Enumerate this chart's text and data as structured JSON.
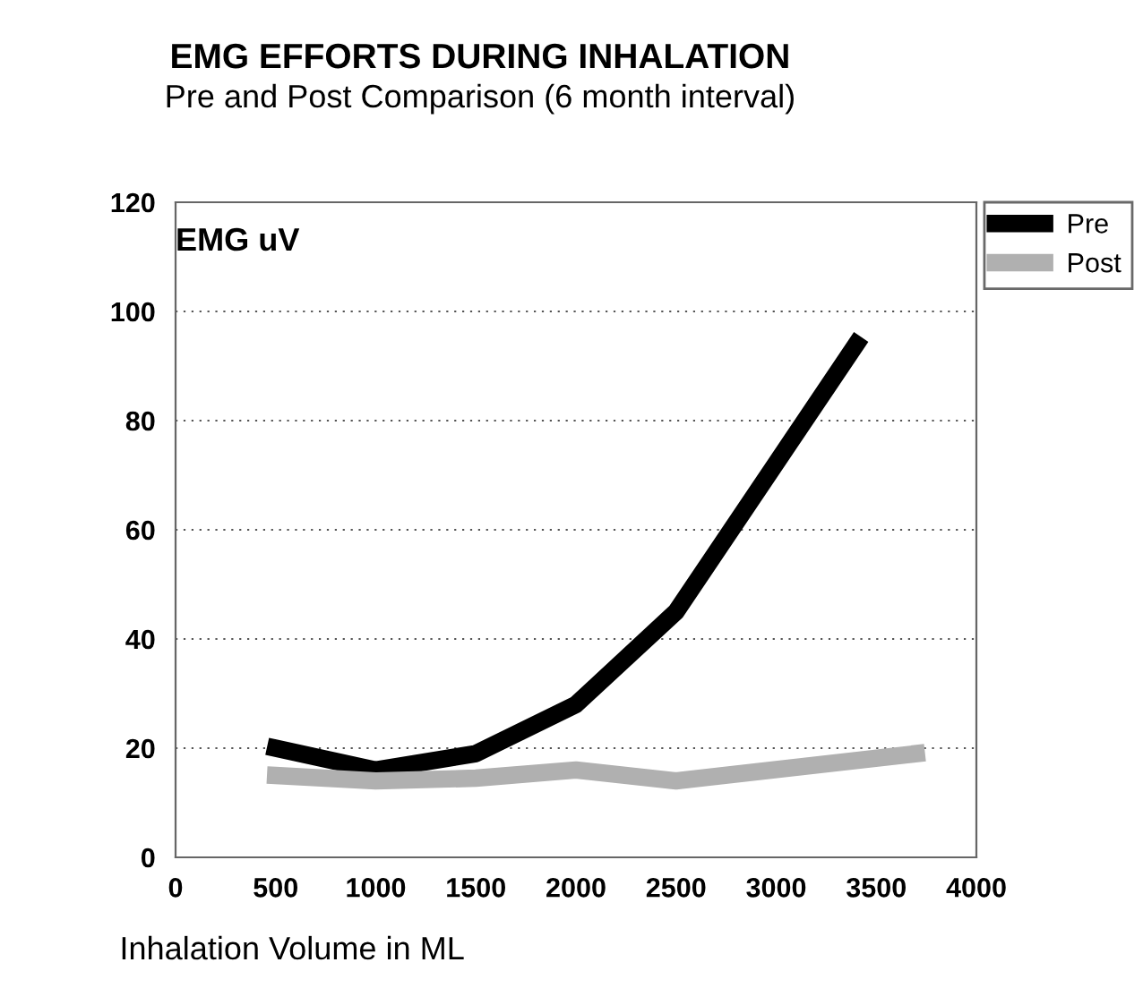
{
  "chart_data": {
    "type": "line",
    "title": "EMG EFFORTS DURING INHALATION",
    "subtitle": "Pre and Post Comparison (6 month interval)",
    "ylabel": "EMG uV",
    "xlabel": "Inhalation Volume in ML",
    "series": [
      {
        "name": "Pre",
        "color": "#000000",
        "x": [
          500,
          1000,
          1500,
          2000,
          2500,
          3400
        ],
        "values": [
          20,
          16,
          19,
          28,
          45,
          94
        ]
      },
      {
        "name": "Post",
        "color": "#b0b0b0",
        "x": [
          500,
          1000,
          1500,
          2000,
          2500,
          3700
        ],
        "values": [
          15,
          14,
          14.5,
          16,
          14,
          19
        ]
      }
    ],
    "xlim": [
      0,
      4000
    ],
    "xticks": [
      0,
      500,
      1000,
      1500,
      2000,
      2500,
      3000,
      3500,
      4000
    ],
    "ylim": [
      0,
      120
    ],
    "yticks": [
      0,
      20,
      40,
      60,
      80,
      100,
      120
    ],
    "grid": "y",
    "legend": "top right",
    "marker": "none",
    "line_style": "solid"
  }
}
